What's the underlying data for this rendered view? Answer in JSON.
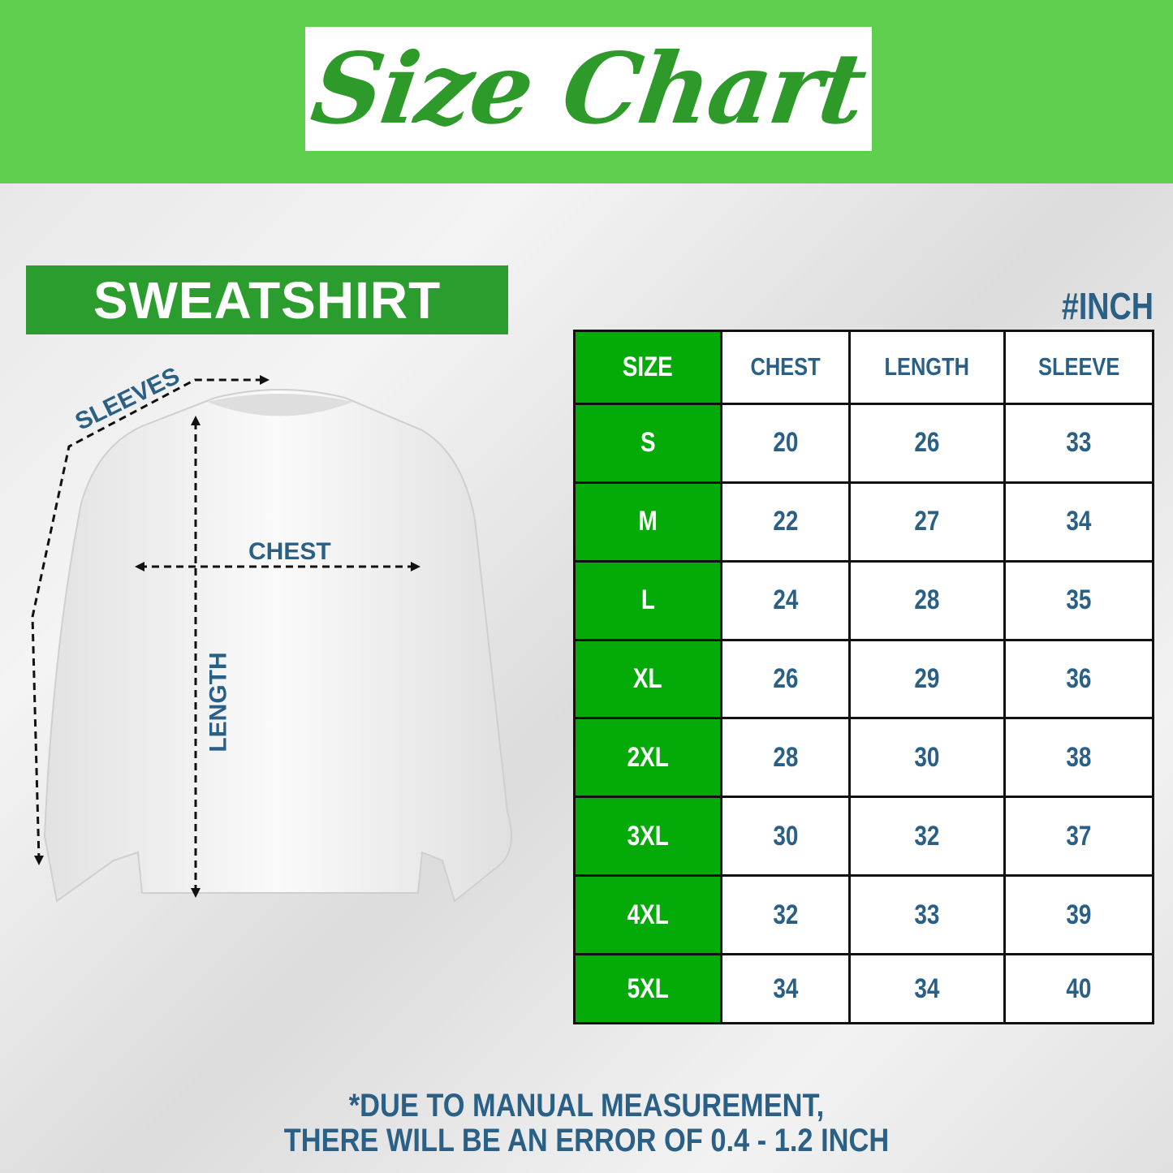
{
  "header": {
    "title": "Size Chart"
  },
  "product": {
    "label": "SWEATSHIRT"
  },
  "unit": "#INCH",
  "diagram": {
    "sleeves": "SLEEVES",
    "chest": "CHEST",
    "length": "LENGTH"
  },
  "table": {
    "columns": [
      "SIZE",
      "CHEST",
      "LENGTH",
      "SLEEVE"
    ],
    "rows": [
      [
        "S",
        "20",
        "26",
        "33"
      ],
      [
        "M",
        "22",
        "27",
        "34"
      ],
      [
        "L",
        "24",
        "28",
        "35"
      ],
      [
        "XL",
        "26",
        "29",
        "36"
      ],
      [
        "2XL",
        "28",
        "30",
        "38"
      ],
      [
        "3XL",
        "30",
        "32",
        "37"
      ],
      [
        "4XL",
        "32",
        "33",
        "39"
      ],
      [
        "5XL",
        "34",
        "34",
        "40"
      ]
    ]
  },
  "footnote": {
    "line1": "*DUE TO MANUAL MEASUREMENT,",
    "line2": "THERE WILL BE AN ERROR OF 0.4 - 1.2 INCH"
  },
  "colors": {
    "green_top": "#5fcf4e",
    "green_cell": "#04aa08",
    "text_blue": "#2a5f86"
  }
}
